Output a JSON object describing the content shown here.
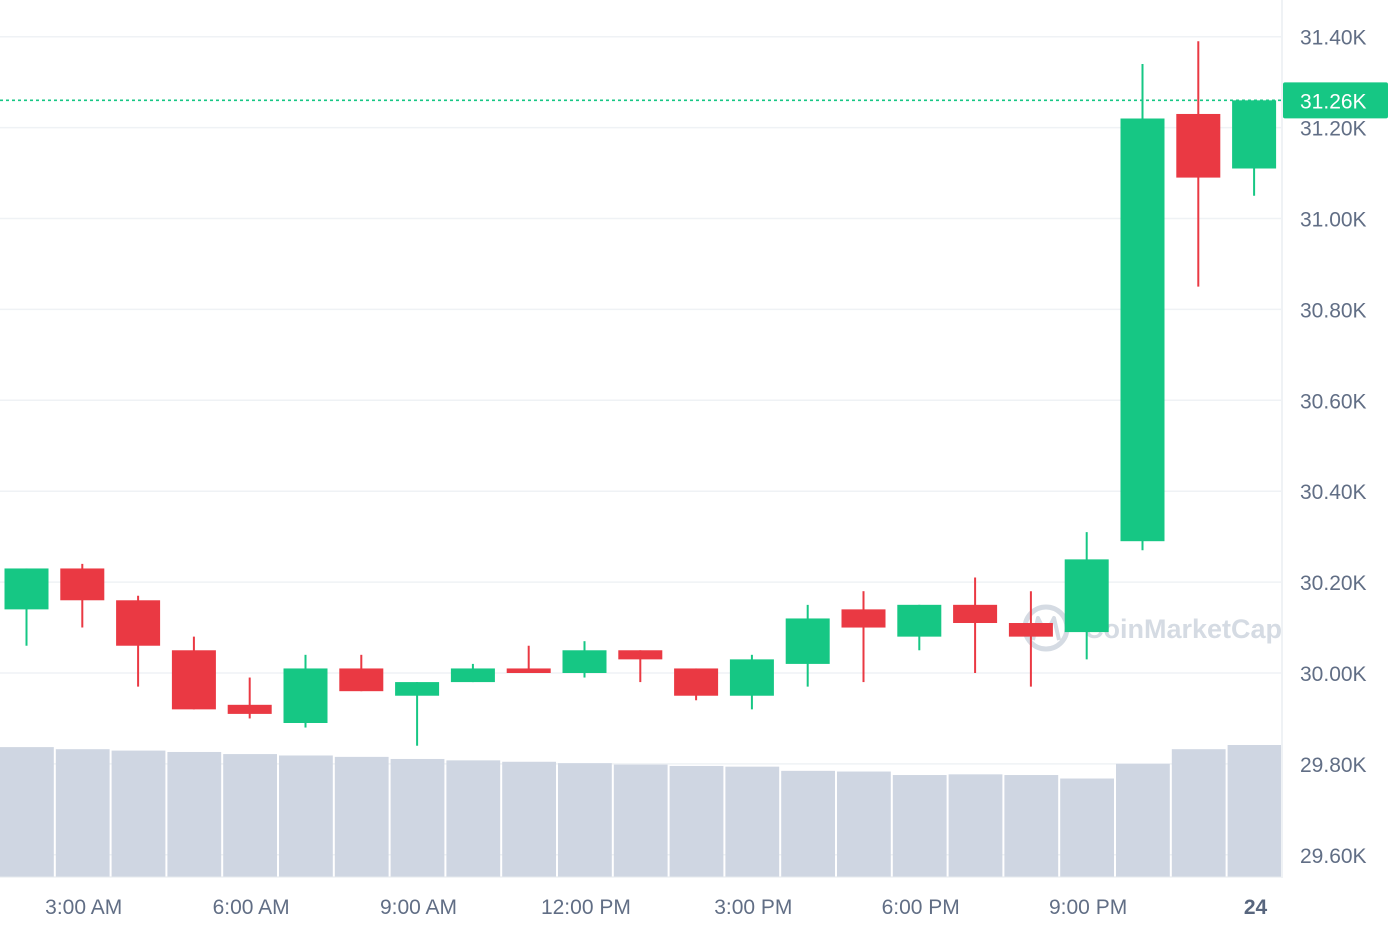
{
  "watermark": {
    "text": "CoinMarketCap"
  },
  "colors": {
    "up": "#16c784",
    "down": "#ea3943",
    "volume": "#cfd6e2",
    "grid": "#eff2f5",
    "axis_text": "#616e85",
    "price_line": "#16c784"
  },
  "current_price": {
    "label": "31.26K",
    "value": 31.26
  },
  "chart_data": {
    "type": "candlestick",
    "title": "",
    "xlabel": "",
    "ylabel": "",
    "ylim": [
      29.55,
      31.47
    ],
    "y_ticks": [
      {
        "value": 31.4,
        "label": "31.40K"
      },
      {
        "value": 31.2,
        "label": "31.20K"
      },
      {
        "value": 31.0,
        "label": "31.00K"
      },
      {
        "value": 30.8,
        "label": "30.80K"
      },
      {
        "value": 30.6,
        "label": "30.60K"
      },
      {
        "value": 30.4,
        "label": "30.40K"
      },
      {
        "value": 30.2,
        "label": "30.20K"
      },
      {
        "value": 30.0,
        "label": "30.00K"
      },
      {
        "value": 29.8,
        "label": "29.80K"
      },
      {
        "value": 29.6,
        "label": "29.60K"
      }
    ],
    "x_ticks": [
      {
        "index": 1.5,
        "label": "3:00 AM",
        "bold": false
      },
      {
        "index": 4.5,
        "label": "6:00 AM",
        "bold": false
      },
      {
        "index": 7.5,
        "label": "9:00 AM",
        "bold": false
      },
      {
        "index": 10.5,
        "label": "12:00 PM",
        "bold": false
      },
      {
        "index": 13.5,
        "label": "3:00 PM",
        "bold": false
      },
      {
        "index": 16.5,
        "label": "6:00 PM",
        "bold": false
      },
      {
        "index": 19.5,
        "label": "9:00 PM",
        "bold": false
      },
      {
        "index": 22.5,
        "label": "24",
        "bold": true
      }
    ],
    "candles": [
      {
        "open": 30.14,
        "close": 30.23,
        "high": 30.23,
        "low": 30.06
      },
      {
        "open": 30.23,
        "close": 30.16,
        "high": 30.24,
        "low": 30.1
      },
      {
        "open": 30.16,
        "close": 30.06,
        "high": 30.17,
        "low": 29.97
      },
      {
        "open": 30.05,
        "close": 29.92,
        "high": 30.08,
        "low": 29.92
      },
      {
        "open": 29.93,
        "close": 29.91,
        "high": 29.99,
        "low": 29.9
      },
      {
        "open": 29.89,
        "close": 30.01,
        "high": 30.04,
        "low": 29.88
      },
      {
        "open": 30.01,
        "close": 29.96,
        "high": 30.04,
        "low": 29.96
      },
      {
        "open": 29.95,
        "close": 29.98,
        "high": 29.98,
        "low": 29.84
      },
      {
        "open": 29.98,
        "close": 30.01,
        "high": 30.02,
        "low": 29.98
      },
      {
        "open": 30.01,
        "close": 30.0,
        "high": 30.06,
        "low": 30.0
      },
      {
        "open": 30.0,
        "close": 30.05,
        "high": 30.07,
        "low": 29.99
      },
      {
        "open": 30.05,
        "close": 30.03,
        "high": 30.05,
        "low": 29.98
      },
      {
        "open": 30.01,
        "close": 29.95,
        "high": 30.01,
        "low": 29.94
      },
      {
        "open": 29.95,
        "close": 30.03,
        "high": 30.04,
        "low": 29.92
      },
      {
        "open": 30.02,
        "close": 30.12,
        "high": 30.15,
        "low": 29.97
      },
      {
        "open": 30.14,
        "close": 30.1,
        "high": 30.18,
        "low": 29.98
      },
      {
        "open": 30.08,
        "close": 30.15,
        "high": 30.15,
        "low": 30.05
      },
      {
        "open": 30.15,
        "close": 30.11,
        "high": 30.21,
        "low": 30.0
      },
      {
        "open": 30.11,
        "close": 30.08,
        "high": 30.18,
        "low": 29.97
      },
      {
        "open": 30.09,
        "close": 30.25,
        "high": 30.31,
        "low": 30.03
      },
      {
        "open": 30.29,
        "close": 31.22,
        "high": 31.34,
        "low": 30.27
      },
      {
        "open": 31.23,
        "close": 31.09,
        "high": 31.39,
        "low": 30.85
      },
      {
        "open": 31.11,
        "close": 31.26,
        "high": 31.26,
        "low": 31.05
      }
    ],
    "volume": [
      0.93,
      0.915,
      0.905,
      0.895,
      0.88,
      0.87,
      0.86,
      0.845,
      0.835,
      0.825,
      0.815,
      0.805,
      0.795,
      0.79,
      0.76,
      0.755,
      0.73,
      0.735,
      0.73,
      0.705,
      0.81,
      0.915,
      0.945
    ]
  }
}
